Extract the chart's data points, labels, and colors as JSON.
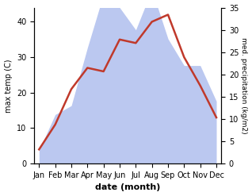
{
  "months": [
    "Jan",
    "Feb",
    "Mar",
    "Apr",
    "May",
    "Jun",
    "Jul",
    "Aug",
    "Sep",
    "Oct",
    "Nov",
    "Dec"
  ],
  "temp": [
    4,
    11,
    21,
    27,
    26,
    35,
    34,
    40,
    42,
    30,
    22,
    13
  ],
  "precip": [
    3,
    11,
    13,
    26,
    38,
    35,
    30,
    39,
    28,
    22,
    22,
    14
  ],
  "temp_color": "#c0392b",
  "precip_fill_color": "#bbc8f0",
  "ylabel_left": "max temp (C)",
  "ylabel_right": "med. precipitation (kg/m2)",
  "xlabel": "date (month)",
  "ylim_left": [
    0,
    44
  ],
  "ylim_right": [
    0,
    35
  ],
  "yticks_left": [
    0,
    10,
    20,
    30,
    40
  ],
  "yticks_right": [
    0,
    5,
    10,
    15,
    20,
    25,
    30,
    35
  ],
  "background_color": "#ffffff",
  "temp_linewidth": 1.8,
  "figsize": [
    3.18,
    2.47
  ],
  "dpi": 100
}
